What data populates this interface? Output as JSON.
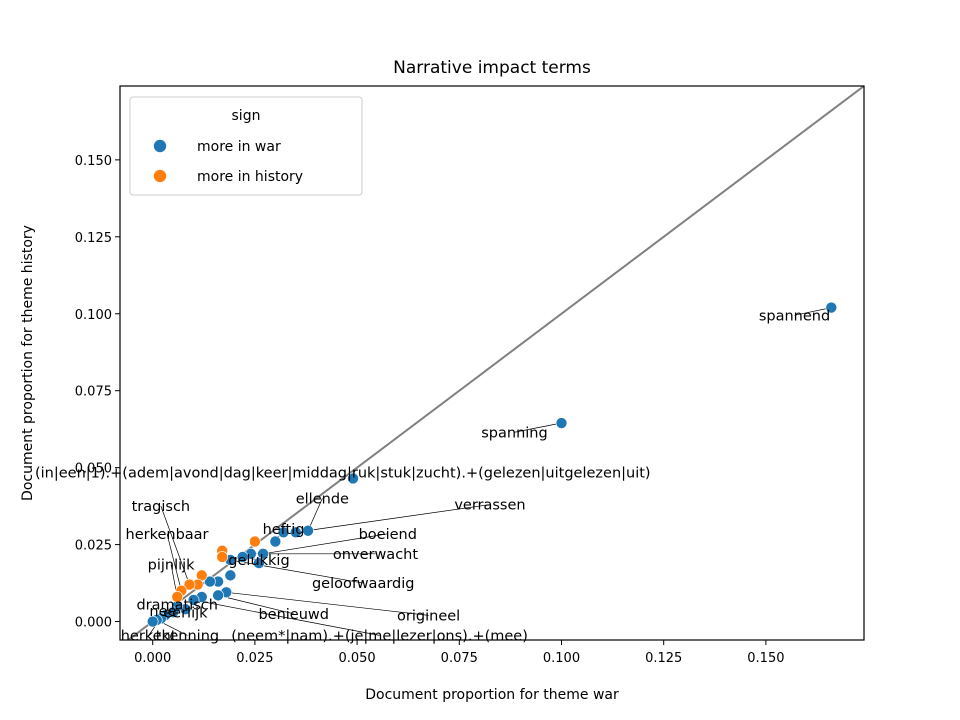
{
  "chart_data": {
    "type": "scatter",
    "title": "Narrative impact terms",
    "xlabel": "Document proportion for theme war",
    "ylabel": "Document proportion for theme history",
    "xlim": [
      -0.008,
      0.174
    ],
    "ylim": [
      -0.006,
      0.174
    ],
    "xticks": [
      0.0,
      0.025,
      0.05,
      0.075,
      0.1,
      0.125,
      0.15
    ],
    "xtick_labels": [
      "0.000",
      "0.025",
      "0.050",
      "0.075",
      "0.100",
      "0.125",
      "0.150"
    ],
    "yticks": [
      0.0,
      0.025,
      0.05,
      0.075,
      0.1,
      0.125,
      0.15
    ],
    "ytick_labels": [
      "0.000",
      "0.025",
      "0.050",
      "0.075",
      "0.100",
      "0.125",
      "0.150"
    ],
    "grid": false,
    "diagonal": true,
    "colors": {
      "more in war": "#1f77b4",
      "more in history": "#ff7f0e",
      "diagonal": "#808080"
    },
    "legend": {
      "title": "sign",
      "placement": "top-left",
      "entries": [
        "more in war",
        "more in history"
      ]
    },
    "series": [
      {
        "name": "more in war",
        "color": "#1f77b4",
        "points": [
          [
            0.166,
            0.102
          ],
          [
            0.1,
            0.0645
          ],
          [
            0.049,
            0.0465
          ],
          [
            0.038,
            0.0295
          ],
          [
            0.035,
            0.029
          ],
          [
            0.032,
            0.029
          ],
          [
            0.03,
            0.026
          ],
          [
            0.027,
            0.022
          ],
          [
            0.026,
            0.019
          ],
          [
            0.024,
            0.022
          ],
          [
            0.022,
            0.021
          ],
          [
            0.019,
            0.02
          ],
          [
            0.019,
            0.015
          ],
          [
            0.016,
            0.013
          ],
          [
            0.018,
            0.0095
          ],
          [
            0.014,
            0.013
          ],
          [
            0.016,
            0.0085
          ],
          [
            0.012,
            0.008
          ],
          [
            0.01,
            0.007
          ],
          [
            0.008,
            0.004
          ],
          [
            0.006,
            0.005
          ],
          [
            0.005,
            0.003
          ],
          [
            0.003,
            0.002
          ],
          [
            0.002,
            0.001
          ],
          [
            0.001,
            0.0005
          ],
          [
            0.0,
            0.0
          ]
        ]
      },
      {
        "name": "more in history",
        "color": "#ff7f0e",
        "points": [
          [
            0.017,
            0.023
          ],
          [
            0.025,
            0.026
          ],
          [
            0.017,
            0.021
          ],
          [
            0.012,
            0.015
          ],
          [
            0.011,
            0.012
          ],
          [
            0.009,
            0.012
          ],
          [
            0.007,
            0.01
          ],
          [
            0.006,
            0.008
          ]
        ]
      }
    ],
    "annotations": [
      {
        "text": "spannend",
        "x": 0.166,
        "y": 0.102,
        "tx": 0.157,
        "ty": 0.0995
      },
      {
        "text": "spanning",
        "x": 0.1,
        "y": 0.0645,
        "tx": 0.0885,
        "ty": 0.0615
      },
      {
        "text": "(in|een|1).+(adem|avond|dag|keer|middag|ruk|stuk|zucht).+(gelezen|uitgelezen|uit)",
        "x": 0.049,
        "y": 0.0465,
        "tx": 0.0465,
        "ty": 0.0485
      },
      {
        "text": "ellende",
        "x": 0.038,
        "y": 0.0295,
        "tx": 0.0415,
        "ty": 0.04
      },
      {
        "text": "verrassen",
        "x": 0.035,
        "y": 0.029,
        "tx": 0.0825,
        "ty": 0.038
      },
      {
        "text": "tragisch",
        "x": 0.009,
        "y": 0.012,
        "tx": 0.002,
        "ty": 0.0375
      },
      {
        "text": "heftig",
        "x": 0.03,
        "y": 0.026,
        "tx": 0.032,
        "ty": 0.03
      },
      {
        "text": "boeiend",
        "x": 0.027,
        "y": 0.022,
        "tx": 0.0575,
        "ty": 0.0285
      },
      {
        "text": "herkenbaar",
        "x": 0.007,
        "y": 0.01,
        "tx": 0.0035,
        "ty": 0.0285
      },
      {
        "text": "onverwacht",
        "x": 0.024,
        "y": 0.022,
        "tx": 0.0545,
        "ty": 0.022
      },
      {
        "text": "gelukkig",
        "x": 0.022,
        "y": 0.021,
        "tx": 0.026,
        "ty": 0.02
      },
      {
        "text": "pijnlijk",
        "x": 0.006,
        "y": 0.008,
        "tx": 0.0045,
        "ty": 0.0185
      },
      {
        "text": "geloofwaardig",
        "x": 0.019,
        "y": 0.02,
        "tx": 0.0515,
        "ty": 0.0125
      },
      {
        "text": "dramatisch",
        "x": 0.005,
        "y": 0.003,
        "tx": 0.006,
        "ty": 0.0055
      },
      {
        "text": "nee",
        "x": 0.003,
        "y": 0.002,
        "tx": 0.0025,
        "ty": 0.0035
      },
      {
        "text": "eerlijk",
        "x": 0.008,
        "y": 0.004,
        "tx": 0.008,
        "ty": 0.003
      },
      {
        "text": "benieuwd",
        "x": 0.016,
        "y": 0.0085,
        "tx": 0.0345,
        "ty": 0.0025
      },
      {
        "text": "origineel",
        "x": 0.018,
        "y": 0.0095,
        "tx": 0.0675,
        "ty": 0.002
      },
      {
        "text": "herkent",
        "x": 0.002,
        "y": 0.001,
        "tx": -0.001,
        "ty": -0.0045
      },
      {
        "text": "tkenning",
        "x": 0.001,
        "y": 0.0005,
        "tx": 0.0085,
        "ty": -0.0045
      },
      {
        "text": "(neem*|nam).+(je|me|lezer|ons).+(mee)",
        "x": 0.01,
        "y": 0.007,
        "tx": 0.0555,
        "ty": -0.0045
      }
    ]
  }
}
